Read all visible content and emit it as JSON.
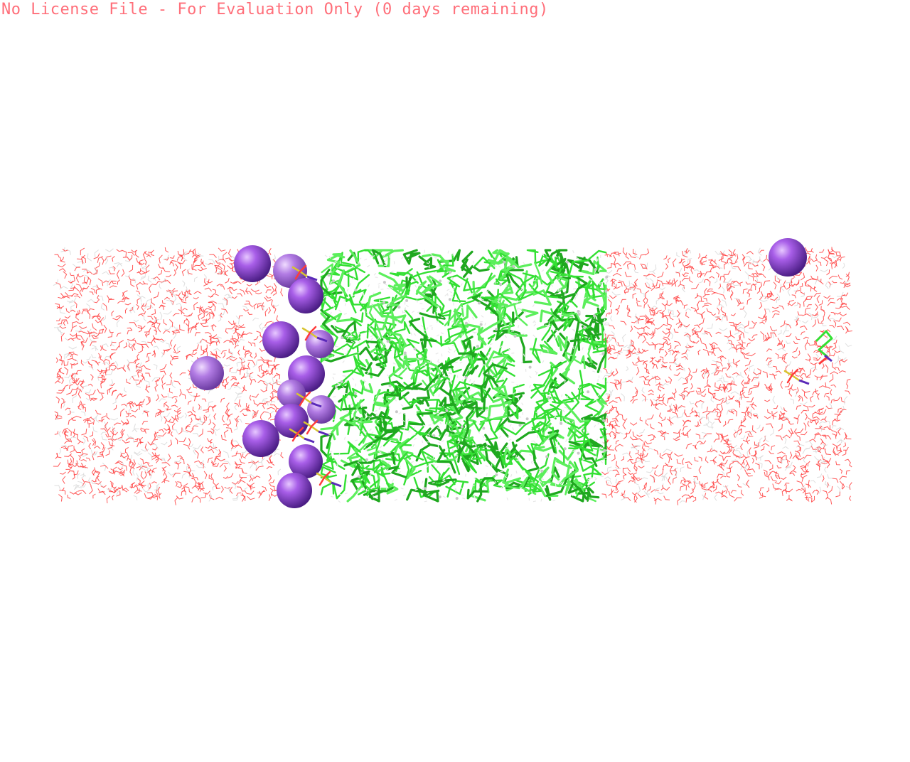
{
  "viewer": {
    "license_banner": "No License File - For Evaluation Only (0 days remaining)",
    "background_color": "#ffffff",
    "banner_color": "#ff6f7a"
  },
  "scene": {
    "description_colors": {
      "water_oxygen": "#ff3b3b",
      "water_hydrogen": "#d8d8d8",
      "polymer_carbon": "#33e033",
      "polymer_hydrogen": "#e8e8e8",
      "ion": "#9a55d8",
      "sulfur": "#d8c430",
      "nitrogen": "#5a2ab8"
    },
    "icons": [
      "molecular-view"
    ]
  }
}
